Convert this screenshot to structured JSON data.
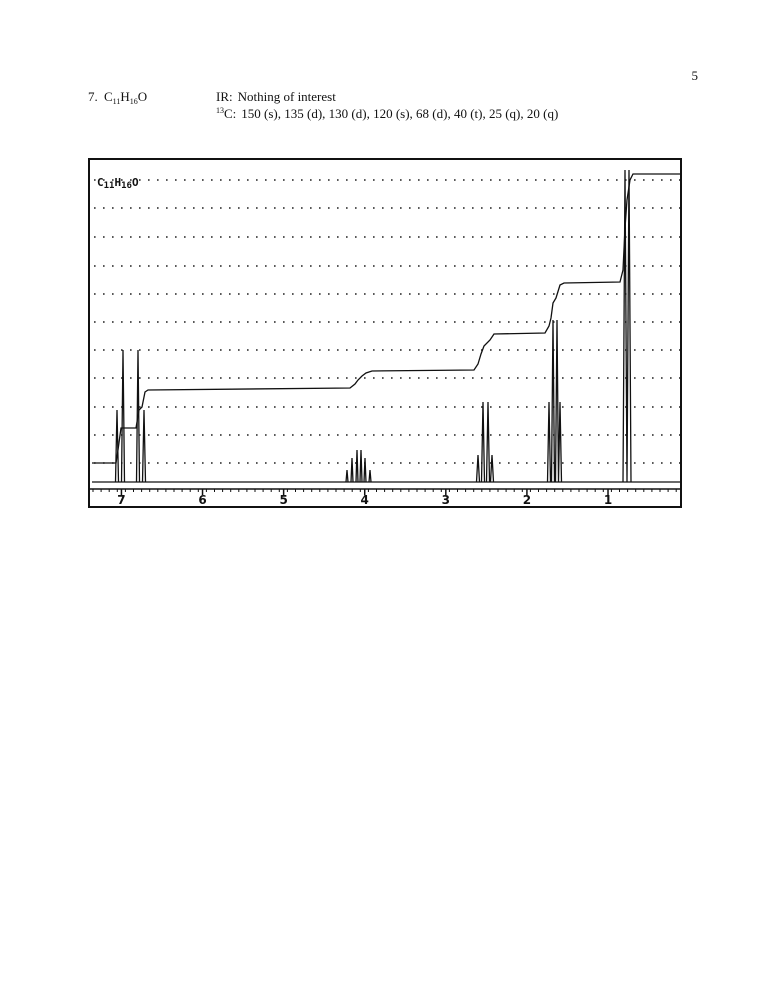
{
  "page_number": "5",
  "problem": {
    "number": "7.",
    "formula": {
      "c": "C",
      "c_count": "11",
      "h": "H",
      "h_count": "16",
      "o": "O"
    },
    "ir": {
      "label": "IR:",
      "text": "Nothing of interest"
    },
    "carbon": {
      "isotope": "13",
      "label": "C:",
      "text": "150 (s), 135 (d), 130 (d), 120 (s), 68 (d), 40 (t), 25 (q), 20 (q)"
    }
  },
  "spectrum": {
    "label": {
      "c": "C",
      "c_count": "11",
      "h": "H",
      "h_count": "16",
      "o": "O"
    },
    "xlim": [
      7.4,
      0.1
    ],
    "xticks": [
      7,
      6,
      5,
      4,
      3,
      2,
      1
    ]
  }
}
